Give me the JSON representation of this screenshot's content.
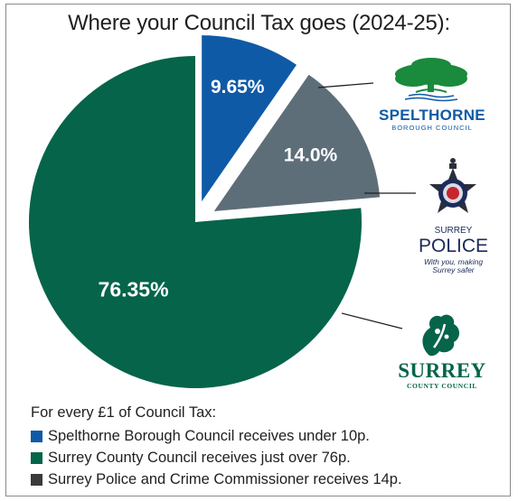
{
  "chart_data": {
    "type": "pie",
    "title": "Where your Council Tax goes (2024-25):",
    "slices": [
      {
        "name": "Spelthorne Borough Council",
        "value": 9.65,
        "label": "9.65%",
        "color": "#0f5aa6",
        "exploded": true
      },
      {
        "name": "Surrey Police and Crime Commissioner",
        "value": 14.0,
        "label": "14.0%",
        "color": "#5e6e79",
        "exploded": true
      },
      {
        "name": "Surrey County Council",
        "value": 76.35,
        "label": "76.35%",
        "color": "#05644a",
        "exploded": false
      }
    ]
  },
  "logos": {
    "spelthorne": {
      "name": "SPELTHORNE",
      "subtitle": "BOROUGH COUNCIL",
      "color": "#0f5aa6",
      "accent": "#1a8a3c"
    },
    "police": {
      "line1": "SURREY",
      "line2": "POLICE",
      "tagline1": "With you, making",
      "tagline2": "Surrey safer",
      "color": "#1c2b59"
    },
    "surrey": {
      "name": "SURREY",
      "subtitle": "COUNTY COUNCIL",
      "color": "#05644a"
    }
  },
  "legend": {
    "intro": "For every £1 of Council Tax:",
    "items": [
      {
        "text": "Spelthorne Borough Council receives under 10p.",
        "color": "#0f5aa6"
      },
      {
        "text": "Surrey County Council receives just over 76p.",
        "color": "#05644a"
      },
      {
        "text": "Surrey Police and Crime Commissioner receives 14p.",
        "color": "#3a3a3a"
      }
    ]
  }
}
